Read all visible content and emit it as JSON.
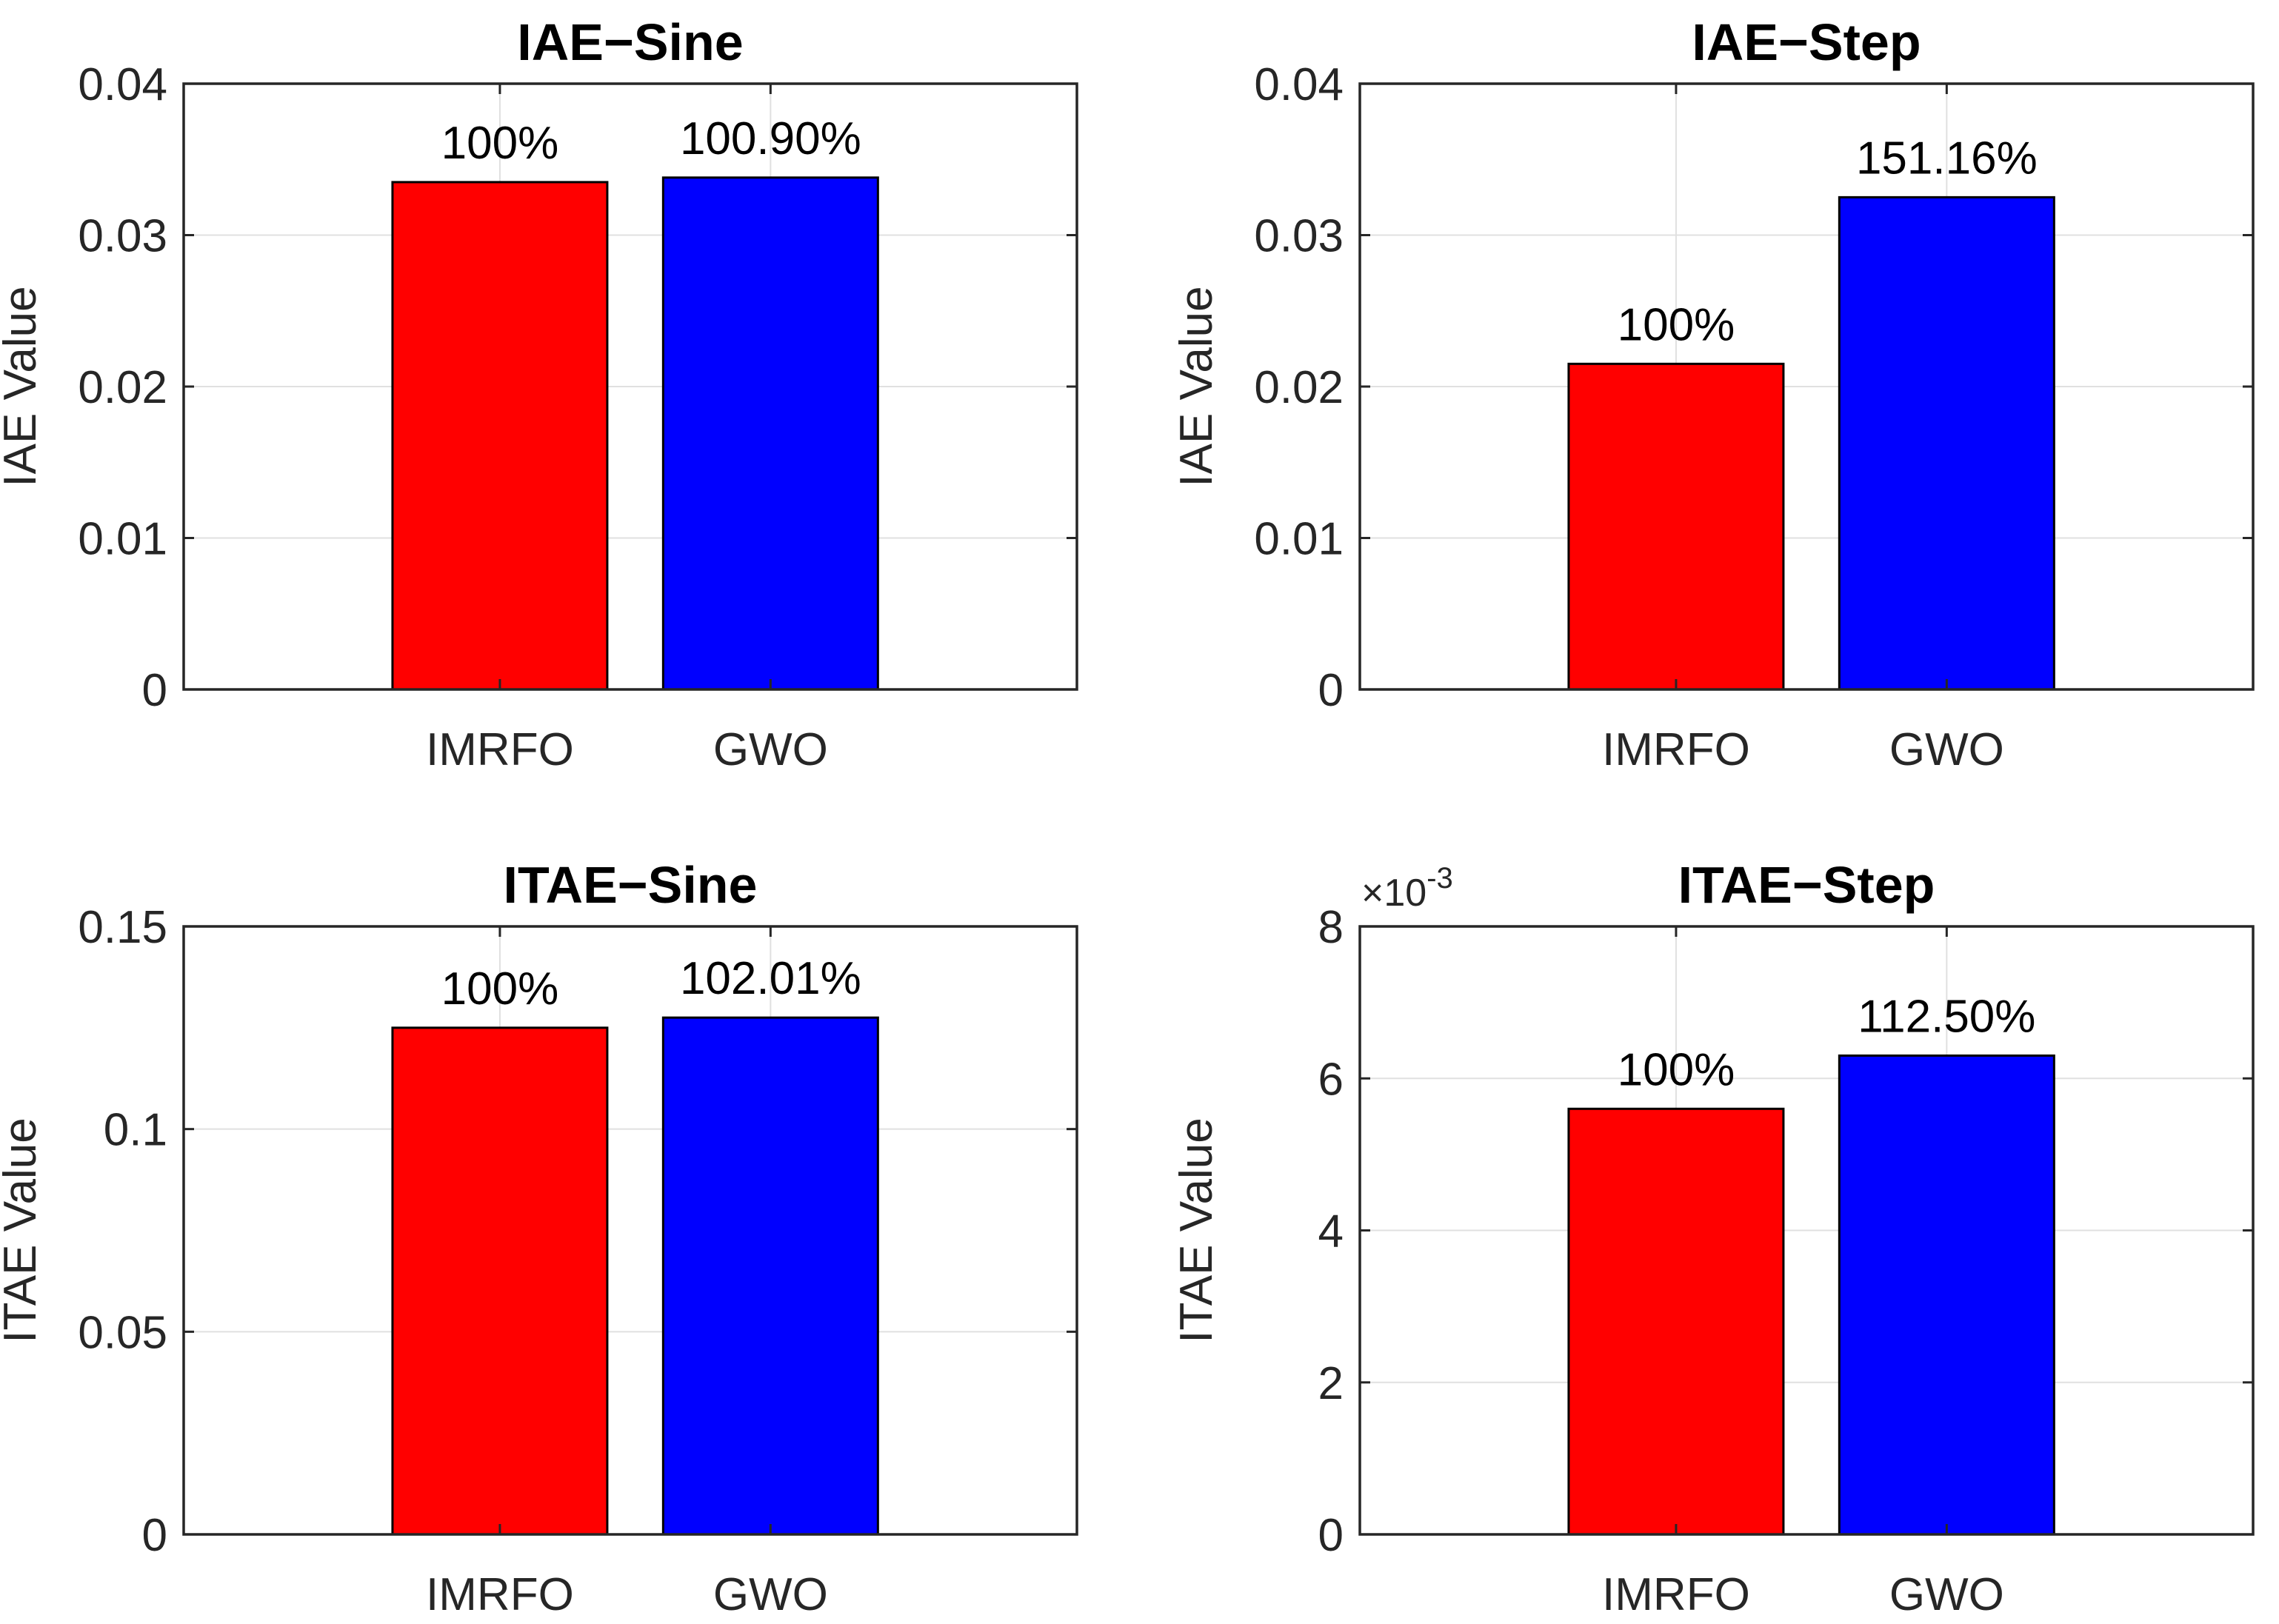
{
  "figure": {
    "background": "#ffffff",
    "axis_color": "#262626",
    "grid_color": "#e0e0e0",
    "bar_edge_color": "#000000",
    "label_color": "#000000"
  },
  "chart_data": [
    {
      "type": "bar",
      "title": "IAE−Sine",
      "ylabel": "IAE Value",
      "categories": [
        "IMRFO",
        "GWO"
      ],
      "values": [
        0.0335,
        0.0338
      ],
      "bar_labels": [
        "100%",
        "100.90%"
      ],
      "bar_colors": [
        "#ff0000",
        "#0000ff"
      ],
      "ylim": [
        0,
        0.04
      ],
      "yticks": [
        0,
        0.01,
        0.02,
        0.03,
        0.04
      ],
      "ytick_labels": [
        "0",
        "0.01",
        "0.02",
        "0.03",
        "0.04"
      ],
      "exponent_base": "",
      "exponent_power": "",
      "grid": true,
      "legend": "none"
    },
    {
      "type": "bar",
      "title": "IAE−Step",
      "ylabel": "IAE Value",
      "categories": [
        "IMRFO",
        "GWO"
      ],
      "values": [
        0.0215,
        0.0325
      ],
      "bar_labels": [
        "100%",
        "151.16%"
      ],
      "bar_colors": [
        "#ff0000",
        "#0000ff"
      ],
      "ylim": [
        0,
        0.04
      ],
      "yticks": [
        0,
        0.01,
        0.02,
        0.03,
        0.04
      ],
      "ytick_labels": [
        "0",
        "0.01",
        "0.02",
        "0.03",
        "0.04"
      ],
      "exponent_base": "",
      "exponent_power": "",
      "grid": true,
      "legend": "none"
    },
    {
      "type": "bar",
      "title": "ITAE−Sine",
      "ylabel": "ITAE Value",
      "categories": [
        "IMRFO",
        "GWO"
      ],
      "values": [
        0.125,
        0.1275
      ],
      "bar_labels": [
        "100%",
        "102.01%"
      ],
      "bar_colors": [
        "#ff0000",
        "#0000ff"
      ],
      "ylim": [
        0,
        0.15
      ],
      "yticks": [
        0,
        0.05,
        0.1,
        0.15
      ],
      "ytick_labels": [
        "0",
        "0.05",
        "0.1",
        "0.15"
      ],
      "exponent_base": "",
      "exponent_power": "",
      "grid": true,
      "legend": "none"
    },
    {
      "type": "bar",
      "title": "ITAE−Step",
      "ylabel": "ITAE Value",
      "categories": [
        "IMRFO",
        "GWO"
      ],
      "values": [
        0.0056,
        0.0063
      ],
      "bar_labels": [
        "100%",
        "112.50%"
      ],
      "bar_colors": [
        "#ff0000",
        "#0000ff"
      ],
      "ylim": [
        0,
        0.008
      ],
      "yticks": [
        0,
        0.002,
        0.004,
        0.006,
        0.008
      ],
      "ytick_labels": [
        "0",
        "2",
        "4",
        "6",
        "8"
      ],
      "exponent_base": "×10",
      "exponent_power": "-3",
      "grid": true,
      "legend": "none"
    }
  ]
}
